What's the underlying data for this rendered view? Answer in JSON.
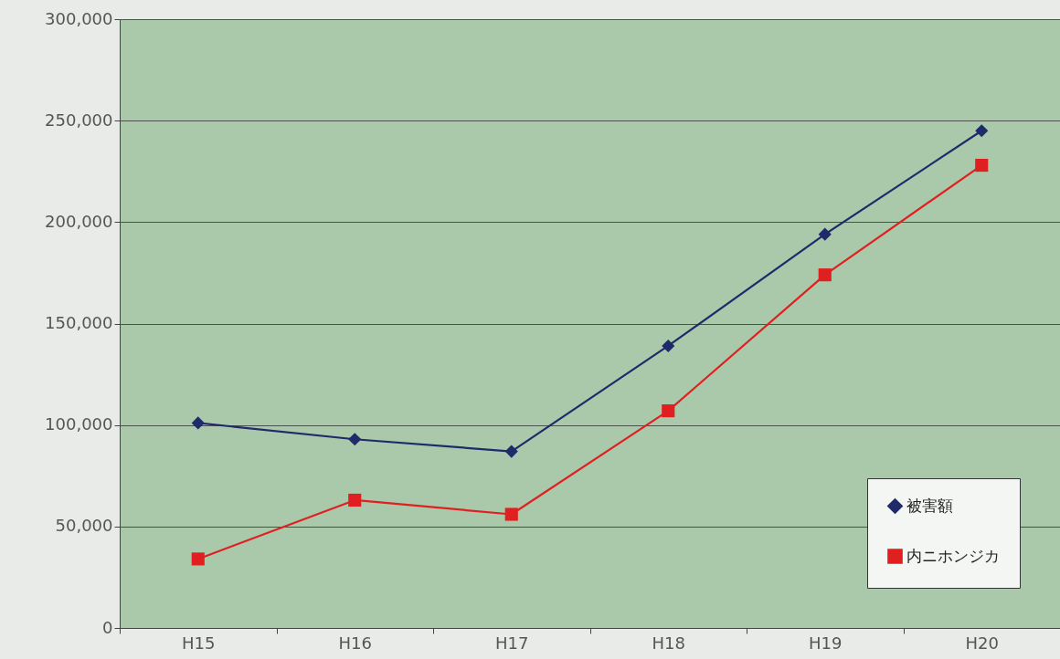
{
  "chart_data": {
    "type": "line",
    "categories": [
      "H15",
      "H16",
      "H17",
      "H18",
      "H19",
      "H20"
    ],
    "series": [
      {
        "name": "被害額",
        "color": "#1f2a6b",
        "marker": "diamond",
        "values": [
          101000,
          93000,
          87000,
          139000,
          194000,
          245000
        ]
      },
      {
        "name": "内ニホンジカ",
        "color": "#e02020",
        "marker": "square",
        "values": [
          34000,
          63000,
          56000,
          107000,
          174000,
          228000
        ]
      }
    ],
    "ylim": [
      0,
      300000
    ],
    "yticks": [
      {
        "value": 0,
        "label": "0"
      },
      {
        "value": 50000,
        "label": "50,000"
      },
      {
        "value": 100000,
        "label": "100,000"
      },
      {
        "value": 150000,
        "label": "150,000"
      },
      {
        "value": 200000,
        "label": "200,000"
      },
      {
        "value": 250000,
        "label": "250,000"
      },
      {
        "value": 300000,
        "label": "300,000"
      }
    ],
    "grid": "y",
    "legend": "bottom right"
  }
}
